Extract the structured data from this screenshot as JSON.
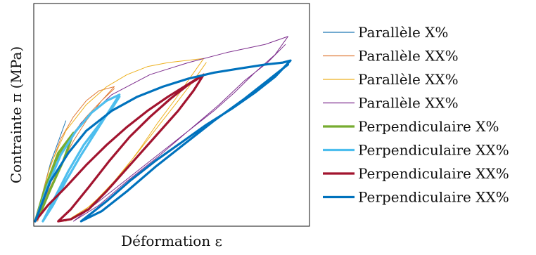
{
  "chart_data": {
    "type": "line",
    "title": "",
    "xlabel": "Déformation ε",
    "ylabel": "Contrainte π (MPa)",
    "xlim": [
      0,
      1
    ],
    "ylim": [
      0,
      1
    ],
    "grid": false,
    "legend_position": "right",
    "x_ticks_shown": false,
    "y_ticks_shown": false,
    "series": [
      {
        "name": "Parallèle X%",
        "color": "#1f77b4",
        "stroke": "thin",
        "x": [
          0.0,
          0.06,
          0.12
        ],
        "y": [
          0.0,
          0.29,
          0.5
        ]
      },
      {
        "name": "Parallèle XX%",
        "color": "#e07b39",
        "stroke": "thin",
        "x": [
          0.0,
          0.05,
          0.1,
          0.15,
          0.2,
          0.25,
          0.31,
          0.26,
          0.2,
          0.15,
          0.1,
          0.04,
          0.01,
          0.04,
          0.1,
          0.15,
          0.2,
          0.26,
          0.31
        ],
        "y": [
          0.0,
          0.24,
          0.41,
          0.52,
          0.6,
          0.65,
          0.67,
          0.6,
          0.5,
          0.4,
          0.28,
          0.12,
          0.0,
          0.16,
          0.33,
          0.44,
          0.52,
          0.6,
          0.66
        ]
      },
      {
        "name": "Parallèle XX%",
        "color": "#edb120",
        "stroke": "thin",
        "x": [
          0.0,
          0.06,
          0.12,
          0.2,
          0.28,
          0.36,
          0.44,
          0.52,
          0.66,
          0.61,
          0.55,
          0.48,
          0.41,
          0.34,
          0.26,
          0.19,
          0.12,
          0.22,
          0.31,
          0.4,
          0.48,
          0.56,
          0.62,
          0.67
        ],
        "y": [
          0.0,
          0.28,
          0.45,
          0.58,
          0.67,
          0.73,
          0.77,
          0.79,
          0.81,
          0.72,
          0.61,
          0.49,
          0.36,
          0.24,
          0.13,
          0.05,
          0.0,
          0.08,
          0.2,
          0.34,
          0.47,
          0.6,
          0.7,
          0.79
        ]
      },
      {
        "name": "Parallèle XX%",
        "color": "#7e2f8e",
        "stroke": "thin",
        "x": [
          0.0,
          0.08,
          0.18,
          0.3,
          0.45,
          0.6,
          0.75,
          0.9,
          0.99,
          0.94,
          0.86,
          0.78,
          0.7,
          0.6,
          0.5,
          0.4,
          0.3,
          0.22,
          0.15,
          0.25,
          0.36,
          0.48,
          0.6,
          0.72,
          0.82,
          0.91,
          0.98
        ],
        "y": [
          0.0,
          0.3,
          0.49,
          0.63,
          0.73,
          0.79,
          0.84,
          0.88,
          0.92,
          0.83,
          0.74,
          0.64,
          0.55,
          0.45,
          0.35,
          0.25,
          0.15,
          0.07,
          0.0,
          0.08,
          0.2,
          0.32,
          0.45,
          0.58,
          0.7,
          0.79,
          0.88
        ]
      },
      {
        "name": "Perpendiculaire X%",
        "color": "#77ac30",
        "stroke": "thick",
        "x": [
          0.0,
          0.04,
          0.09,
          0.15,
          0.11,
          0.06,
          0.02,
          0.0,
          0.03,
          0.08,
          0.15
        ],
        "y": [
          0.0,
          0.17,
          0.34,
          0.44,
          0.3,
          0.16,
          0.04,
          0.0,
          0.13,
          0.3,
          0.43
        ]
      },
      {
        "name": "Perpendiculaire XX%",
        "color": "#4dbeee",
        "stroke": "thick",
        "x": [
          0.0,
          0.05,
          0.1,
          0.16,
          0.22,
          0.28,
          0.33,
          0.29,
          0.24,
          0.18,
          0.12,
          0.07,
          0.03,
          0.07,
          0.13,
          0.19,
          0.25,
          0.3,
          0.33
        ],
        "y": [
          0.0,
          0.18,
          0.33,
          0.45,
          0.54,
          0.6,
          0.63,
          0.55,
          0.45,
          0.33,
          0.2,
          0.08,
          0.0,
          0.1,
          0.25,
          0.38,
          0.48,
          0.56,
          0.62
        ]
      },
      {
        "name": "Perpendiculaire XX%",
        "color": "#a2142f",
        "stroke": "thick",
        "x": [
          0.0,
          0.05,
          0.12,
          0.2,
          0.28,
          0.36,
          0.44,
          0.52,
          0.66,
          0.62,
          0.56,
          0.49,
          0.42,
          0.35,
          0.28,
          0.21,
          0.14,
          0.09,
          0.14,
          0.21,
          0.29,
          0.37,
          0.45,
          0.53,
          0.6,
          0.65
        ],
        "y": [
          0.0,
          0.08,
          0.17,
          0.28,
          0.38,
          0.47,
          0.55,
          0.62,
          0.73,
          0.65,
          0.55,
          0.45,
          0.35,
          0.25,
          0.15,
          0.06,
          0.01,
          0.0,
          0.06,
          0.17,
          0.3,
          0.42,
          0.52,
          0.61,
          0.68,
          0.72
        ]
      },
      {
        "name": "Perpendiculaire XX%",
        "color": "#0072bd",
        "stroke": "thick",
        "x": [
          0.0,
          0.06,
          0.13,
          0.2,
          0.3,
          0.4,
          0.5,
          0.6,
          0.7,
          0.8,
          0.9,
          0.97,
          1.0,
          0.94,
          0.86,
          0.77,
          0.67,
          0.57,
          0.47,
          0.37,
          0.28,
          0.22,
          0.18,
          0.26,
          0.36,
          0.47,
          0.58,
          0.7,
          0.82,
          0.92,
          0.99
        ],
        "y": [
          0.0,
          0.2,
          0.34,
          0.45,
          0.55,
          0.62,
          0.67,
          0.71,
          0.74,
          0.76,
          0.78,
          0.79,
          0.8,
          0.72,
          0.64,
          0.56,
          0.48,
          0.39,
          0.3,
          0.2,
          0.1,
          0.04,
          0.0,
          0.05,
          0.15,
          0.27,
          0.38,
          0.5,
          0.61,
          0.71,
          0.78
        ]
      }
    ]
  }
}
